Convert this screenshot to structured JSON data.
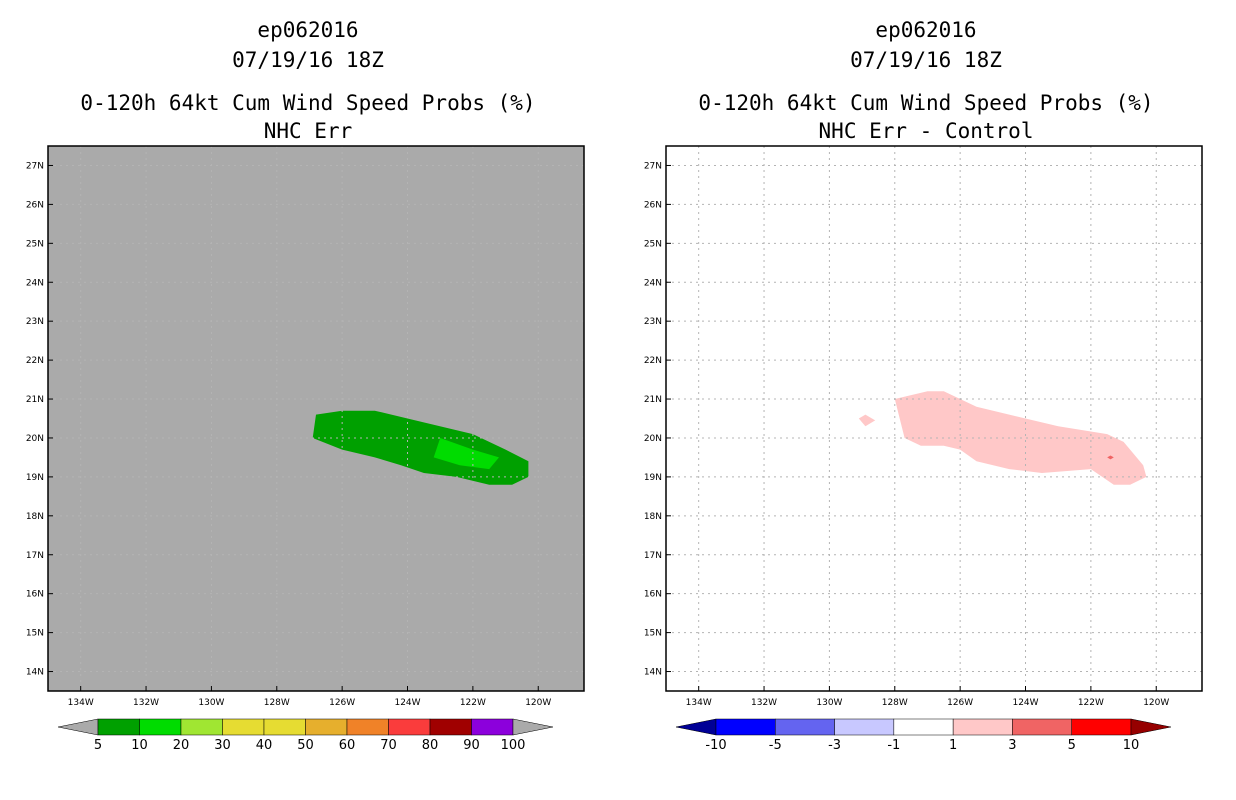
{
  "chart_data": [
    {
      "type": "contour-map",
      "title_lines": [
        "ep062016",
        "07/19/16 18Z",
        "0-120h 64kt Cum Wind Speed Probs (%)",
        "NHC Err"
      ],
      "lon_ticks": [
        "134W",
        "132W",
        "130W",
        "128W",
        "126W",
        "124W",
        "122W",
        "120W"
      ],
      "lat_ticks": [
        "27N",
        "26N",
        "25N",
        "24N",
        "23N",
        "22N",
        "21N",
        "20N",
        "19N",
        "18N",
        "17N",
        "16N",
        "15N",
        "14N"
      ],
      "lon_range": [
        -135.0,
        -118.6
      ],
      "lat_range": [
        13.5,
        27.5
      ],
      "grid": true,
      "background_color": "#aaaaaa",
      "regions": [
        {
          "level": "5-10",
          "color": "#00a000",
          "points": [
            [
              -126.8,
              20.6
            ],
            [
              -126.0,
              20.7
            ],
            [
              -125.0,
              20.7
            ],
            [
              -124.0,
              20.5
            ],
            [
              -122.0,
              20.1
            ],
            [
              -121.0,
              19.7
            ],
            [
              -120.3,
              19.4
            ],
            [
              -120.3,
              19.0
            ],
            [
              -120.8,
              18.8
            ],
            [
              -121.5,
              18.8
            ],
            [
              -122.5,
              19.0
            ],
            [
              -123.5,
              19.1
            ],
            [
              -124.2,
              19.3
            ],
            [
              -125.0,
              19.5
            ],
            [
              -125.5,
              19.6
            ],
            [
              -126.0,
              19.7
            ],
            [
              -126.9,
              20.0
            ]
          ]
        },
        {
          "level": "10-20",
          "color": "#00dc00",
          "points": [
            [
              -123.0,
              20.0
            ],
            [
              -122.0,
              19.7
            ],
            [
              -121.2,
              19.5
            ],
            [
              -121.5,
              19.2
            ],
            [
              -122.4,
              19.3
            ],
            [
              -123.2,
              19.5
            ]
          ]
        }
      ],
      "colorbar": {
        "labels": [
          "5",
          "10",
          "20",
          "30",
          "40",
          "50",
          "60",
          "70",
          "80",
          "90",
          "100"
        ],
        "colors": [
          "#00a000",
          "#00dc00",
          "#a0e632",
          "#e6dc32",
          "#e6dc32",
          "#e6af2d",
          "#f08228",
          "#fa3c3c",
          "#a00000",
          "#8c00dc"
        ],
        "under_color": "#aaaaaa",
        "over_color": "#aaaaaa"
      }
    },
    {
      "type": "contour-map",
      "title_lines": [
        "ep062016",
        "07/19/16 18Z",
        "0-120h 64kt Cum Wind Speed Probs (%)",
        "NHC Err - Control"
      ],
      "lon_ticks": [
        "134W",
        "132W",
        "130W",
        "128W",
        "126W",
        "124W",
        "122W",
        "120W"
      ],
      "lat_ticks": [
        "27N",
        "26N",
        "25N",
        "24N",
        "23N",
        "22N",
        "21N",
        "20N",
        "19N",
        "18N",
        "17N",
        "16N",
        "15N",
        "14N"
      ],
      "lon_range": [
        -135.0,
        -118.6
      ],
      "lat_range": [
        13.5,
        27.5
      ],
      "grid": true,
      "background_color": "#ffffff",
      "regions": [
        {
          "level": "1-3",
          "color": "#ffc8c8",
          "points": [
            [
              -128.0,
              21.0
            ],
            [
              -127.0,
              21.2
            ],
            [
              -126.5,
              21.2
            ],
            [
              -126.0,
              21.0
            ],
            [
              -125.5,
              20.8
            ],
            [
              -124.0,
              20.5
            ],
            [
              -123.0,
              20.3
            ],
            [
              -121.5,
              20.1
            ],
            [
              -121.0,
              19.9
            ],
            [
              -120.4,
              19.3
            ],
            [
              -120.3,
              19.0
            ],
            [
              -120.8,
              18.8
            ],
            [
              -121.3,
              18.8
            ],
            [
              -122.0,
              19.2
            ],
            [
              -123.5,
              19.1
            ],
            [
              -124.5,
              19.2
            ],
            [
              -125.5,
              19.4
            ],
            [
              -126.0,
              19.7
            ],
            [
              -126.5,
              19.8
            ],
            [
              -127.2,
              19.8
            ],
            [
              -127.7,
              20.0
            ]
          ]
        },
        {
          "level": "1-3",
          "color": "#ffc8c8",
          "points": [
            [
              -129.1,
              20.5
            ],
            [
              -128.9,
              20.6
            ],
            [
              -128.6,
              20.45
            ],
            [
              -128.9,
              20.3
            ]
          ]
        },
        {
          "level": "3-5",
          "color": "#f06464",
          "points": [
            [
              -121.4,
              19.55
            ],
            [
              -121.3,
              19.5
            ],
            [
              -121.4,
              19.45
            ],
            [
              -121.5,
              19.5
            ]
          ]
        }
      ],
      "colorbar": {
        "labels": [
          "-10",
          "-5",
          "-3",
          "-1",
          "1",
          "3",
          "5",
          "10"
        ],
        "colors": [
          "#0000ff",
          "#6464f0",
          "#c8c8ff",
          "#ffffff",
          "#ffc8c8",
          "#f06464",
          "#ff0000"
        ],
        "under_color": "#000096",
        "over_color": "#960000"
      }
    }
  ]
}
